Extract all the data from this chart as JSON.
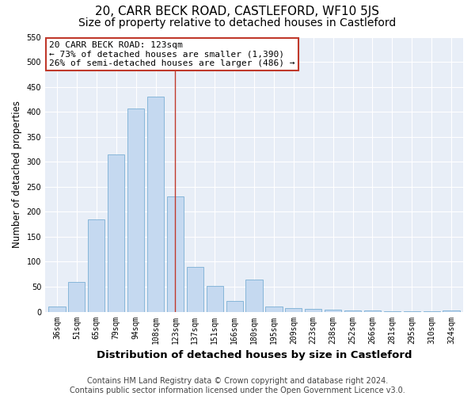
{
  "title": "20, CARR BECK ROAD, CASTLEFORD, WF10 5JS",
  "subtitle": "Size of property relative to detached houses in Castleford",
  "xlabel": "Distribution of detached houses by size in Castleford",
  "ylabel": "Number of detached properties",
  "categories": [
    "36sqm",
    "51sqm",
    "65sqm",
    "79sqm",
    "94sqm",
    "108sqm",
    "123sqm",
    "137sqm",
    "151sqm",
    "166sqm",
    "180sqm",
    "195sqm",
    "209sqm",
    "223sqm",
    "238sqm",
    "252sqm",
    "266sqm",
    "281sqm",
    "295sqm",
    "310sqm",
    "324sqm"
  ],
  "values": [
    10,
    60,
    185,
    315,
    407,
    430,
    230,
    90,
    52,
    22,
    65,
    10,
    8,
    5,
    4,
    2,
    2,
    1,
    1,
    1,
    3
  ],
  "bar_color": "#c5d9f0",
  "bar_edge_color": "#7bafd4",
  "highlight_index": 6,
  "highlight_line_color": "#c0392b",
  "annotation_box_text": "20 CARR BECK ROAD: 123sqm\n← 73% of detached houses are smaller (1,390)\n26% of semi-detached houses are larger (486) →",
  "annotation_box_color": "#c0392b",
  "annotation_bg": "#ffffff",
  "ylim": [
    0,
    550
  ],
  "yticks": [
    0,
    50,
    100,
    150,
    200,
    250,
    300,
    350,
    400,
    450,
    500,
    550
  ],
  "fig_bg_color": "#ffffff",
  "plot_bg_color": "#e8eef7",
  "title_fontsize": 11,
  "subtitle_fontsize": 10,
  "tick_fontsize": 7,
  "ylabel_fontsize": 8.5,
  "xlabel_fontsize": 9.5,
  "footer_fontsize": 7,
  "annotation_fontsize": 8,
  "footer_line1": "Contains HM Land Registry data © Crown copyright and database right 2024.",
  "footer_line2": "Contains public sector information licensed under the Open Government Licence v3.0."
}
